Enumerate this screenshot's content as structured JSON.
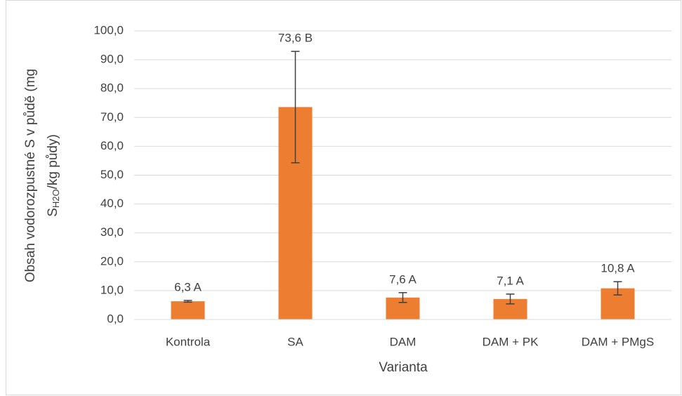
{
  "chart_data": {
    "type": "bar",
    "y_label": {
      "line1": "Obsah vodorozpustné S v půdě (mg",
      "line2_main": "S",
      "line2_sub": "H2O",
      "line2_rest": "/kg půdy)"
    },
    "x_label": "Varianta",
    "categories": [
      "Kontrola",
      "SA",
      "DAM",
      "DAM + PK",
      "DAM + PMgS"
    ],
    "values": [
      6.3,
      73.6,
      7.6,
      7.1,
      10.8
    ],
    "errors": [
      0.3,
      19.3,
      1.7,
      1.7,
      2.3
    ],
    "value_labels": [
      "6,3 A",
      "73,6 B",
      "7,6 A",
      "7,1 A",
      "10,8 A"
    ],
    "color": "#ed7d31",
    "ylim": [
      0,
      100
    ],
    "yticks": [
      {
        "value": 0,
        "label": "0,0"
      },
      {
        "value": 10,
        "label": "10,0"
      },
      {
        "value": 20,
        "label": "20,0"
      },
      {
        "value": 30,
        "label": "30,0"
      },
      {
        "value": 40,
        "label": "40,0"
      },
      {
        "value": 50,
        "label": "50,0"
      },
      {
        "value": 60,
        "label": "60,0"
      },
      {
        "value": 70,
        "label": "70,0"
      },
      {
        "value": 80,
        "label": "80,0"
      },
      {
        "value": 90,
        "label": "90,0"
      },
      {
        "value": 100,
        "label": "100,0"
      }
    ],
    "grid": true
  }
}
